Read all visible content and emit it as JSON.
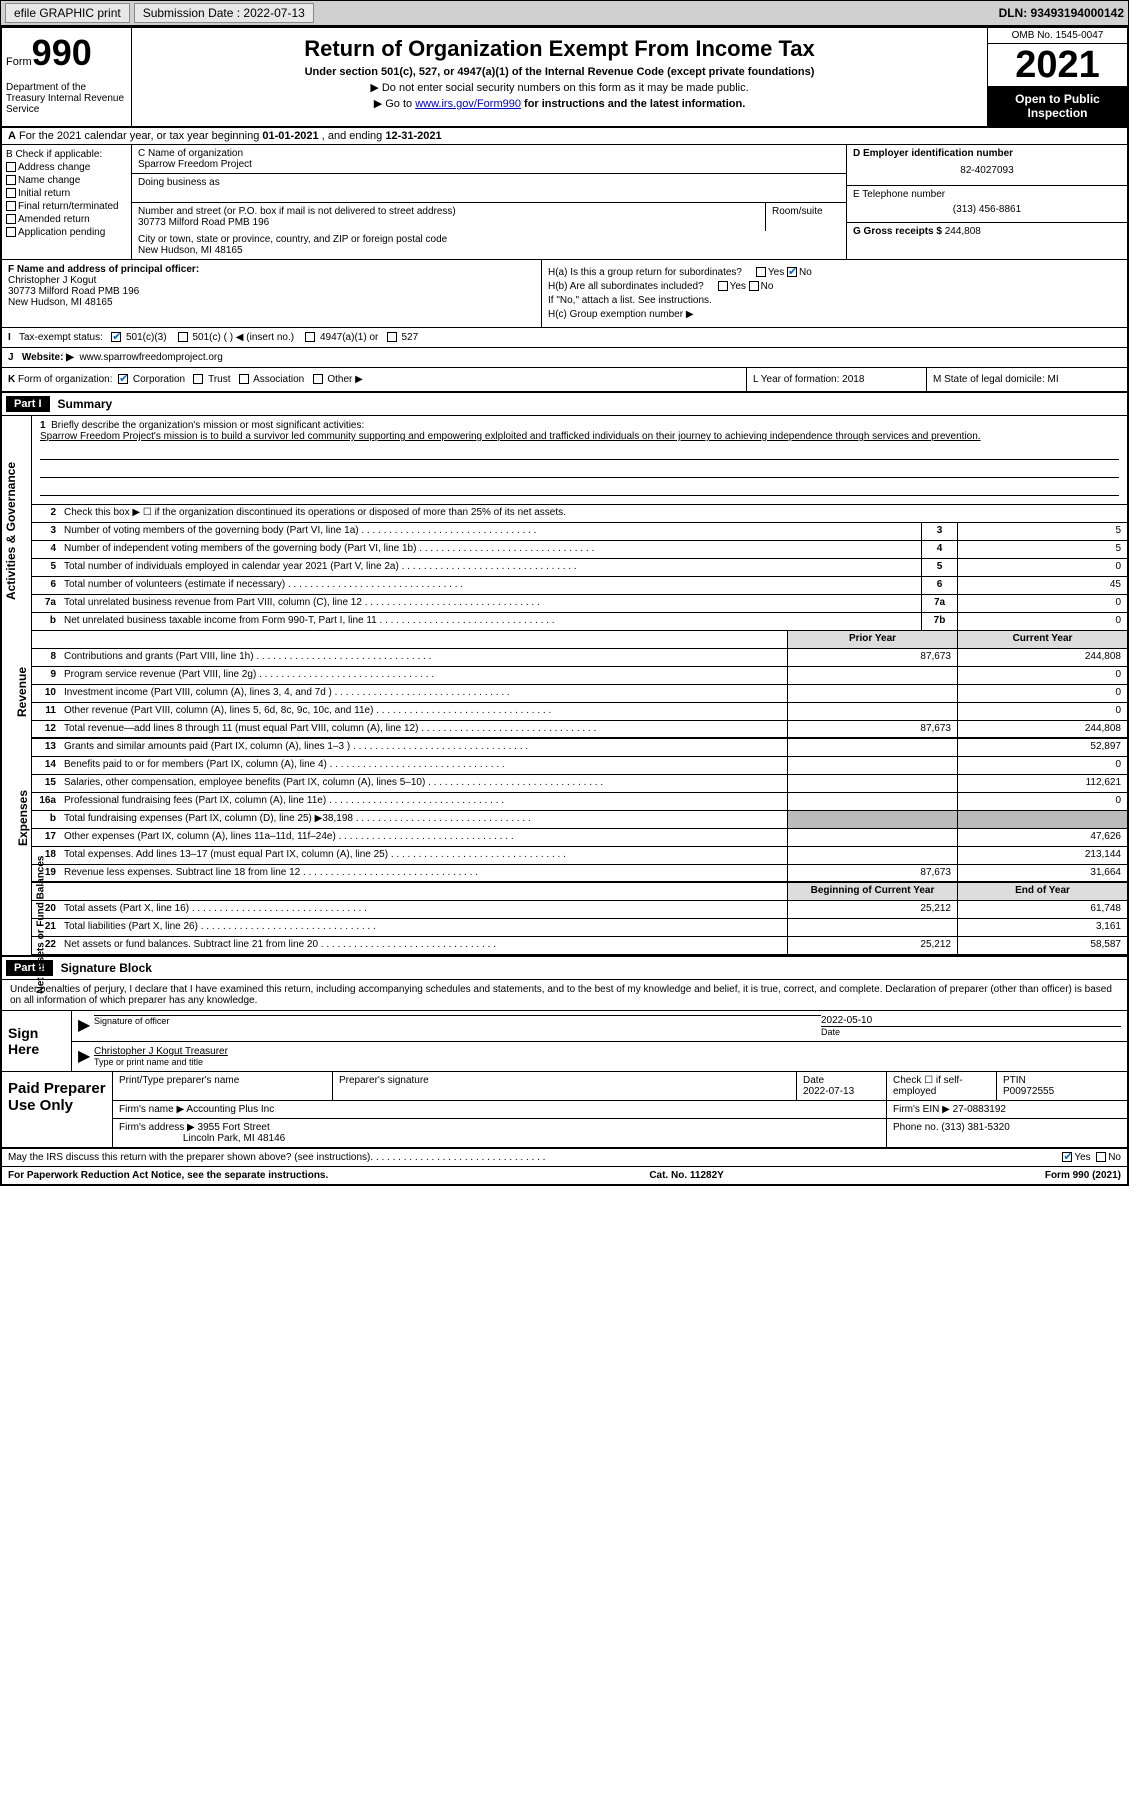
{
  "top_bar": {
    "efile_btn": "efile GRAPHIC print",
    "submission_date_label": "Submission Date : 2022-07-13",
    "dln": "DLN: 93493194000142"
  },
  "header": {
    "form_word": "Form",
    "form_number": "990",
    "dept": "Department of the Treasury Internal Revenue Service",
    "title": "Return of Organization Exempt From Income Tax",
    "subtitle": "Under section 501(c), 527, or 4947(a)(1) of the Internal Revenue Code (except private foundations)",
    "note1": "▶ Do not enter social security numbers on this form as it may be made public.",
    "note2_pre": "▶ Go to ",
    "note2_link": "www.irs.gov/Form990",
    "note2_post": " for instructions and the latest information.",
    "omb": "OMB No. 1545-0047",
    "year": "2021",
    "inspection": "Open to Public Inspection"
  },
  "row_a": {
    "label": "A",
    "text_pre": "For the 2021 calendar year, or tax year beginning ",
    "date1": "01-01-2021",
    "text_mid": " , and ending ",
    "date2": "12-31-2021"
  },
  "col_b": {
    "label": "B Check if applicable:",
    "opts": [
      "Address change",
      "Name change",
      "Initial return",
      "Final return/terminated",
      "Amended return",
      "Application pending"
    ]
  },
  "col_c": {
    "name_label": "C Name of organization",
    "name": "Sparrow Freedom Project",
    "dba_label": "Doing business as",
    "street_label": "Number and street (or P.O. box if mail is not delivered to street address)",
    "street": "30773 Milford Road PMB 196",
    "room_label": "Room/suite",
    "city_label": "City or town, state or province, country, and ZIP or foreign postal code",
    "city": "New Hudson, MI  48165"
  },
  "col_d": {
    "ein_label": "D Employer identification number",
    "ein": "82-4027093",
    "phone_label": "E Telephone number",
    "phone": "(313) 456-8861",
    "gross_label": "G Gross receipts $ ",
    "gross": "244,808"
  },
  "col_f": {
    "label": "F Name and address of principal officer:",
    "name": "Christopher J Kogut",
    "addr1": "30773 Milford Road PMB 196",
    "addr2": "New Hudson, MI  48165"
  },
  "col_h": {
    "ha": "H(a)  Is this a group return for subordinates?",
    "ha_no_checked": true,
    "hb": "H(b)  Are all subordinates included?",
    "hb_note": "If \"No,\" attach a list. See instructions.",
    "hc": "H(c)  Group exemption number ▶"
  },
  "row_i": {
    "label": "I",
    "text": "Tax-exempt status:",
    "c3_checked": true,
    "opts": [
      "501(c)(3)",
      "501(c) (  ) ◀ (insert no.)",
      "4947(a)(1) or",
      "527"
    ]
  },
  "row_j": {
    "label": "J",
    "text": "Website: ▶",
    "url": "www.sparrowfreedomproject.org"
  },
  "row_k": {
    "label": "K",
    "text": "Form of organization:",
    "corp_checked": true,
    "opts": [
      "Corporation",
      "Trust",
      "Association",
      "Other ▶"
    ]
  },
  "row_l": {
    "text": "L Year of formation: 2018"
  },
  "row_m": {
    "text": "M State of legal domicile: MI"
  },
  "part1": {
    "header": "Part I",
    "title": "Summary",
    "line1_label": "1",
    "line1_text": "Briefly describe the organization's mission or most significant activities:",
    "mission": "Sparrow Freedom Project's mission is to build a survivor led community supporting and empowering exlploited and trafficked individuals on their journey to achieving independence through services and prevention.",
    "line2": "Check this box ▶ ☐ if the organization discontinued its operations or disposed of more than 25% of its net assets.",
    "side_gov": "Activities & Governance",
    "side_rev": "Revenue",
    "side_exp": "Expenses",
    "side_net": "Net Assets or Fund Balances",
    "rows_gov": [
      {
        "n": "3",
        "desc": "Number of voting members of the governing body (Part VI, line 1a)",
        "box": "3",
        "val": "5"
      },
      {
        "n": "4",
        "desc": "Number of independent voting members of the governing body (Part VI, line 1b)",
        "box": "4",
        "val": "5"
      },
      {
        "n": "5",
        "desc": "Total number of individuals employed in calendar year 2021 (Part V, line 2a)",
        "box": "5",
        "val": "0"
      },
      {
        "n": "6",
        "desc": "Total number of volunteers (estimate if necessary)",
        "box": "6",
        "val": "45"
      },
      {
        "n": "7a",
        "desc": "Total unrelated business revenue from Part VIII, column (C), line 12",
        "box": "7a",
        "val": "0"
      },
      {
        "n": "b",
        "desc": "Net unrelated business taxable income from Form 990-T, Part I, line 11",
        "box": "7b",
        "val": "0"
      }
    ],
    "col_prior": "Prior Year",
    "col_current": "Current Year",
    "rows_rev": [
      {
        "n": "8",
        "desc": "Contributions and grants (Part VIII, line 1h)",
        "prior": "87,673",
        "cur": "244,808"
      },
      {
        "n": "9",
        "desc": "Program service revenue (Part VIII, line 2g)",
        "prior": "",
        "cur": "0"
      },
      {
        "n": "10",
        "desc": "Investment income (Part VIII, column (A), lines 3, 4, and 7d )",
        "prior": "",
        "cur": "0"
      },
      {
        "n": "11",
        "desc": "Other revenue (Part VIII, column (A), lines 5, 6d, 8c, 9c, 10c, and 11e)",
        "prior": "",
        "cur": "0"
      },
      {
        "n": "12",
        "desc": "Total revenue—add lines 8 through 11 (must equal Part VIII, column (A), line 12)",
        "prior": "87,673",
        "cur": "244,808"
      }
    ],
    "rows_exp": [
      {
        "n": "13",
        "desc": "Grants and similar amounts paid (Part IX, column (A), lines 1–3 )",
        "prior": "",
        "cur": "52,897"
      },
      {
        "n": "14",
        "desc": "Benefits paid to or for members (Part IX, column (A), line 4)",
        "prior": "",
        "cur": "0"
      },
      {
        "n": "15",
        "desc": "Salaries, other compensation, employee benefits (Part IX, column (A), lines 5–10)",
        "prior": "",
        "cur": "112,621"
      },
      {
        "n": "16a",
        "desc": "Professional fundraising fees (Part IX, column (A), line 11e)",
        "prior": "",
        "cur": "0"
      },
      {
        "n": "b",
        "desc": "Total fundraising expenses (Part IX, column (D), line 25) ▶38,198",
        "prior": "SHADED",
        "cur": "SHADED"
      },
      {
        "n": "17",
        "desc": "Other expenses (Part IX, column (A), lines 11a–11d, 11f–24e)",
        "prior": "",
        "cur": "47,626"
      },
      {
        "n": "18",
        "desc": "Total expenses. Add lines 13–17 (must equal Part IX, column (A), line 25)",
        "prior": "",
        "cur": "213,144"
      },
      {
        "n": "19",
        "desc": "Revenue less expenses. Subtract line 18 from line 12",
        "prior": "87,673",
        "cur": "31,664"
      }
    ],
    "col_begin": "Beginning of Current Year",
    "col_end": "End of Year",
    "rows_net": [
      {
        "n": "20",
        "desc": "Total assets (Part X, line 16)",
        "prior": "25,212",
        "cur": "61,748"
      },
      {
        "n": "21",
        "desc": "Total liabilities (Part X, line 26)",
        "prior": "",
        "cur": "3,161"
      },
      {
        "n": "22",
        "desc": "Net assets or fund balances. Subtract line 21 from line 20",
        "prior": "25,212",
        "cur": "58,587"
      }
    ]
  },
  "part2": {
    "header": "Part II",
    "title": "Signature Block",
    "declaration": "Under penalties of perjury, I declare that I have examined this return, including accompanying schedules and statements, and to the best of my knowledge and belief, it is true, correct, and complete. Declaration of preparer (other than officer) is based on all information of which preparer has any knowledge.",
    "sign_here": "Sign Here",
    "sig_officer_label": "Signature of officer",
    "sig_date": "2022-05-10",
    "sig_date_label": "Date",
    "sig_name": "Christopher J Kogut Treasurer",
    "sig_name_label": "Type or print name and title",
    "paid_label": "Paid Preparer Use Only",
    "prep_name_label": "Print/Type preparer's name",
    "prep_sig_label": "Preparer's signature",
    "prep_date_label": "Date",
    "prep_date": "2022-07-13",
    "prep_check_label": "Check ☐ if self-employed",
    "ptin_label": "PTIN",
    "ptin": "P00972555",
    "firm_name_label": "Firm's name      ▶",
    "firm_name": "Accounting Plus Inc",
    "firm_ein_label": "Firm's EIN ▶",
    "firm_ein": "27-0883192",
    "firm_addr_label": "Firm's address ▶",
    "firm_addr1": "3955 Fort Street",
    "firm_addr2": "Lincoln Park, MI  48146",
    "firm_phone_label": "Phone no.",
    "firm_phone": "(313) 381-5320",
    "discuss": "May the IRS discuss this return with the preparer shown above? (see instructions)",
    "discuss_yes_checked": true
  },
  "footer": {
    "paperwork": "For Paperwork Reduction Act Notice, see the separate instructions.",
    "cat": "Cat. No. 11282Y",
    "form": "Form 990 (2021)"
  }
}
